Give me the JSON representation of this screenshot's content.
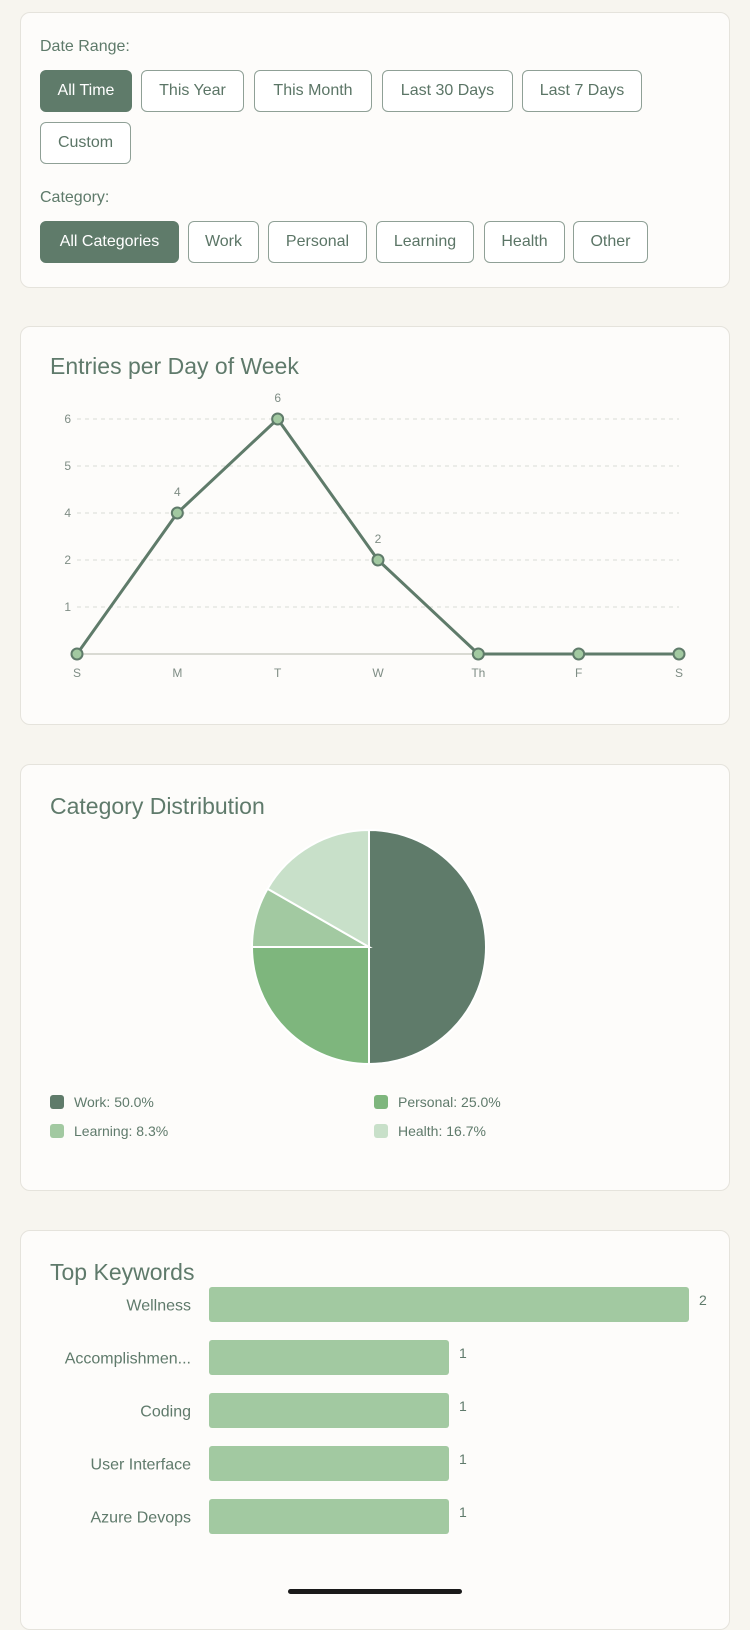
{
  "filters": {
    "date_label": "Date Range:",
    "date_options": [
      "All Time",
      "This Year",
      "This Month",
      "Last 30 Days",
      "Last 7 Days",
      "Custom"
    ],
    "date_selected": "All Time",
    "category_label": "Category:",
    "category_options": [
      "All Categories",
      "Work",
      "Personal",
      "Learning",
      "Health",
      "Other"
    ],
    "category_selected": "All Categories"
  },
  "week_chart": {
    "title": "Entries per Day of Week",
    "chart_data": {
      "type": "line",
      "categories": [
        "S",
        "M",
        "T",
        "W",
        "Th",
        "F",
        "S"
      ],
      "values": [
        0,
        4,
        6,
        2,
        0,
        0,
        0
      ],
      "point_labels": [
        "",
        "4",
        "6",
        "2",
        "",
        "",
        ""
      ],
      "y_ticks": [
        "1",
        "2",
        "4",
        "5",
        "6"
      ],
      "grid": true
    }
  },
  "category_chart": {
    "title": "Category Distribution",
    "chart_data": {
      "type": "pie",
      "slices": [
        {
          "name": "Work",
          "value": 50.0,
          "label": "Work: 50.0%",
          "color": "#5f7b6a"
        },
        {
          "name": "Personal",
          "value": 25.0,
          "label": "Personal: 25.0%",
          "color": "#7eb67d"
        },
        {
          "name": "Learning",
          "value": 8.3,
          "label": "Learning: 8.3%",
          "color": "#a2c9a1"
        },
        {
          "name": "Health",
          "value": 16.7,
          "label": "Health: 16.7%",
          "color": "#c8e0c9"
        }
      ]
    }
  },
  "keywords_chart": {
    "title": "Top Keywords",
    "chart_data": {
      "type": "bar",
      "orientation": "horizontal",
      "categories": [
        "Wellness",
        "Accomplishmen...",
        "Coding",
        "User Interface",
        "Azure Devops"
      ],
      "values": [
        2,
        1,
        1,
        1,
        1
      ],
      "value_labels": [
        "2",
        "1",
        "1",
        "1",
        "1"
      ],
      "color": "#a2c9a1"
    }
  }
}
